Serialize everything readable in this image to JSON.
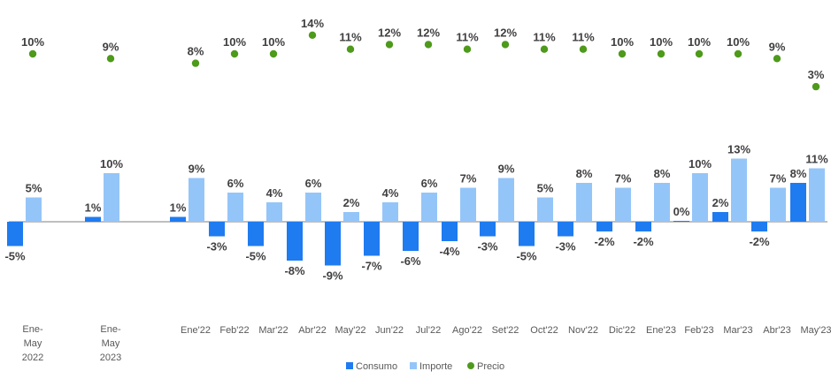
{
  "chart_data": {
    "type": "bar",
    "categories": [
      "Ene-May 2022",
      "Ene-May 2023",
      "Ene'22",
      "Feb'22",
      "Mar'22",
      "Abr'22",
      "May'22",
      "Jun'22",
      "Jul'22",
      "Ago'22",
      "Set'22",
      "Oct'22",
      "Nov'22",
      "Dic'22",
      "Ene'23",
      "Feb'23",
      "Mar'23",
      "Abr'23",
      "May'23"
    ],
    "category_lines": [
      [
        "Ene-",
        "May",
        "2022"
      ],
      [
        "Ene-",
        "May",
        "2023"
      ],
      [
        "Ene'22"
      ],
      [
        "Feb'22"
      ],
      [
        "Mar'22"
      ],
      [
        "Abr'22"
      ],
      [
        "May'22"
      ],
      [
        "Jun'22"
      ],
      [
        "Jul'22"
      ],
      [
        "Ago'22"
      ],
      [
        "Set'22"
      ],
      [
        "Oct'22"
      ],
      [
        "Nov'22"
      ],
      [
        "Dic'22"
      ],
      [
        "Ene'23"
      ],
      [
        "Feb'23"
      ],
      [
        "Mar'23"
      ],
      [
        "Abr'23"
      ],
      [
        "May'23"
      ]
    ],
    "series": [
      {
        "name": "Consumo",
        "kind": "bar",
        "color": "#1f7bf0",
        "values": [
          -5,
          1,
          1,
          -3,
          -5,
          -8,
          -9,
          -7,
          -6,
          -4,
          -3,
          -5,
          -3,
          -2,
          -2,
          0,
          2,
          -2,
          8
        ],
        "labels": [
          "-5%",
          "1%",
          "1%",
          "-3%",
          "-5%",
          "-8%",
          "-9%",
          "-7%",
          "-6%",
          "-4%",
          "-3%",
          "-5%",
          "-3%",
          "-2%",
          "-2%",
          "0%",
          "2%",
          "-2%",
          "8%"
        ]
      },
      {
        "name": "Importe",
        "kind": "bar",
        "color": "#94c5f8",
        "values": [
          5,
          10,
          9,
          6,
          4,
          6,
          2,
          4,
          6,
          7,
          9,
          5,
          8,
          7,
          8,
          10,
          13,
          7,
          11
        ],
        "labels": [
          "5%",
          "10%",
          "9%",
          "6%",
          "4%",
          "6%",
          "2%",
          "4%",
          "6%",
          "7%",
          "9%",
          "5%",
          "8%",
          "7%",
          "8%",
          "10%",
          "13%",
          "7%",
          "11%"
        ]
      },
      {
        "name": "Precio",
        "kind": "scatter",
        "color": "#4e9a1b",
        "values": [
          10,
          9,
          8,
          10,
          10,
          14,
          11,
          12,
          12,
          11,
          12,
          11,
          11,
          10,
          10,
          10,
          10,
          9,
          3
        ],
        "labels": [
          "10%",
          "9%",
          "8%",
          "10%",
          "10%",
          "14%",
          "11%",
          "12%",
          "12%",
          "11%",
          "12%",
          "11%",
          "11%",
          "10%",
          "10%",
          "10%",
          "10%",
          "9%",
          "3%"
        ]
      }
    ],
    "legend": {
      "position": "bottom",
      "entries": [
        "Consumo",
        "Importe",
        "Precio"
      ]
    },
    "grid": false,
    "ylim": [
      -9,
      13
    ]
  }
}
